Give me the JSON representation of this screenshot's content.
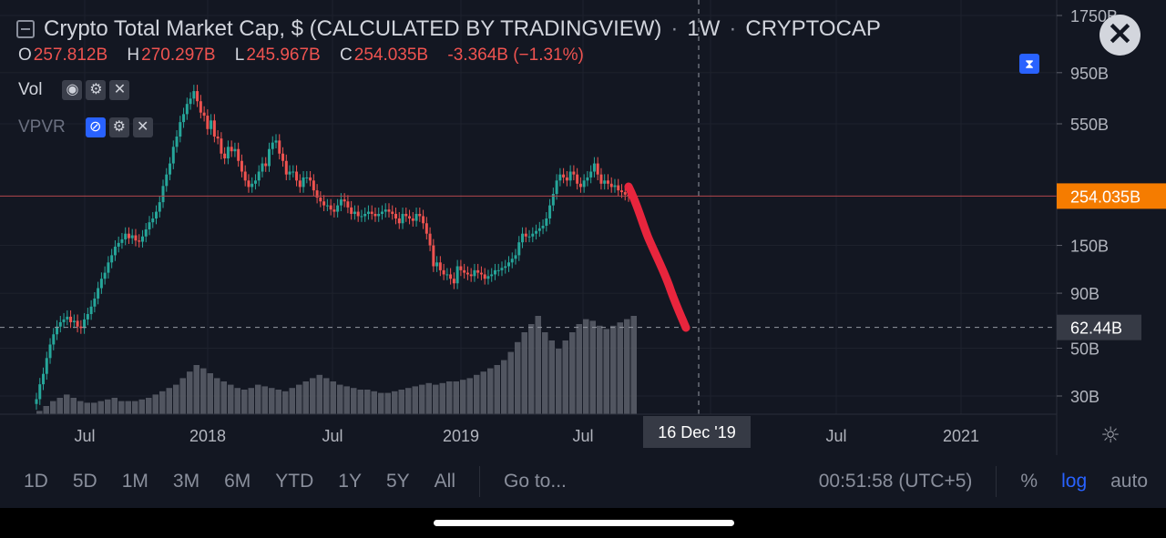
{
  "header": {
    "title": "Crypto Total Market Cap, $ (CALCULATED BY TRADINGVIEW)",
    "dot1": "·",
    "interval": "1W",
    "dot2": "·",
    "symbol": "CRYPTOCAP"
  },
  "ohlc": {
    "o_label": "O",
    "o_value": "257.812B",
    "h_label": "H",
    "h_value": "270.297B",
    "l_label": "L",
    "l_value": "245.967B",
    "c_label": "C",
    "c_value": "254.035B",
    "change": "-3.364B (−1.31%)"
  },
  "indicators": {
    "vol": {
      "label": "Vol"
    },
    "vpvr": {
      "label": "VPVR"
    }
  },
  "icons": {
    "eye": "◉",
    "eye_off": "⊘",
    "gear": "⚙",
    "close": "✕",
    "settings": "☼",
    "toggle": "⧗"
  },
  "price_axis": {
    "ticks": [
      "1750B",
      "950B",
      "550B",
      "150B",
      "90B",
      "50B",
      "30B"
    ],
    "last_price_badge": "254.035B",
    "crosshair_price_badge": "62.44B"
  },
  "time_axis": {
    "ticks": [
      "Jul",
      "2018",
      "Jul",
      "2019",
      "Jul",
      "Jul",
      "2021"
    ],
    "crosshair_date": "16 Dec '19"
  },
  "toolbar": {
    "timeframes": [
      "1D",
      "5D",
      "1M",
      "3M",
      "6M",
      "YTD",
      "1Y",
      "5Y",
      "All"
    ],
    "goto": "Go to...",
    "clock": "00:51:58 (UTC+5)",
    "percent": "%",
    "log": "log",
    "auto": "auto"
  },
  "colors": {
    "up": "#26a69a",
    "down": "#ef5350",
    "volume": "#5d606b",
    "last_price": "#f57c00",
    "drawing": "#e8253d",
    "background": "#131722"
  },
  "chart_data": {
    "type": "candlestick",
    "scale": "log",
    "y_ticks": [
      1750,
      950,
      550,
      150,
      90,
      50,
      30
    ],
    "last_close": 254.035,
    "crosshair": {
      "date": "16 Dec '19",
      "price": 62.44
    },
    "annotation": "hand-drawn red downward line from latest candle toward 62.44B",
    "closes_weekly_billions": [
      29,
      34,
      38,
      45,
      52,
      58,
      63,
      66,
      68,
      70,
      66,
      67,
      63,
      62,
      68,
      72,
      78,
      85,
      95,
      105,
      112,
      125,
      135,
      148,
      154,
      160,
      170,
      162,
      167,
      158,
      156,
      165,
      178,
      192,
      200,
      215,
      238,
      283,
      320,
      360,
      430,
      480,
      560,
      610,
      680,
      720,
      780,
      700,
      620,
      600,
      520,
      570,
      480,
      470,
      400,
      380,
      430,
      410,
      420,
      370,
      330,
      300,
      280,
      290,
      300,
      330,
      360,
      350,
      420,
      450,
      460,
      400,
      370,
      320,
      330,
      330,
      300,
      280,
      310,
      310,
      300,
      270,
      250,
      240,
      230,
      230,
      220,
      215,
      230,
      245,
      240,
      225,
      210,
      215,
      205,
      205,
      210,
      215,
      210,
      205,
      210,
      215,
      220,
      215,
      210,
      200,
      190,
      210,
      205,
      200,
      195,
      210,
      205,
      190,
      170,
      150,
      120,
      125,
      115,
      110,
      110,
      105,
      100,
      120,
      115,
      112,
      110,
      108,
      115,
      112,
      110,
      105,
      108,
      110,
      115,
      115,
      118,
      120,
      125,
      130,
      135,
      155,
      170,
      165,
      165,
      170,
      175,
      180,
      185,
      200,
      230,
      260,
      300,
      320,
      310,
      300,
      330,
      320,
      290,
      280,
      300,
      310,
      330,
      360,
      320,
      290,
      300,
      290,
      280,
      285,
      270,
      265,
      258,
      254
    ],
    "volume_rel": [
      0.02,
      0.05,
      0.08,
      0.1,
      0.12,
      0.1,
      0.08,
      0.07,
      0.07,
      0.08,
      0.09,
      0.1,
      0.08,
      0.08,
      0.08,
      0.09,
      0.1,
      0.12,
      0.14,
      0.16,
      0.18,
      0.22,
      0.26,
      0.3,
      0.28,
      0.25,
      0.22,
      0.2,
      0.18,
      0.16,
      0.15,
      0.16,
      0.18,
      0.17,
      0.16,
      0.15,
      0.14,
      0.16,
      0.18,
      0.2,
      0.22,
      0.24,
      0.22,
      0.2,
      0.18,
      0.17,
      0.16,
      0.15,
      0.15,
      0.14,
      0.13,
      0.13,
      0.14,
      0.15,
      0.16,
      0.17,
      0.18,
      0.19,
      0.18,
      0.19,
      0.2,
      0.2,
      0.21,
      0.22,
      0.24,
      0.26,
      0.28,
      0.3,
      0.33,
      0.38,
      0.44,
      0.5,
      0.55,
      0.6,
      0.5,
      0.45,
      0.4,
      0.45,
      0.5,
      0.55,
      0.58,
      0.57,
      0.54,
      0.52,
      0.54,
      0.56,
      0.58,
      0.6
    ]
  }
}
